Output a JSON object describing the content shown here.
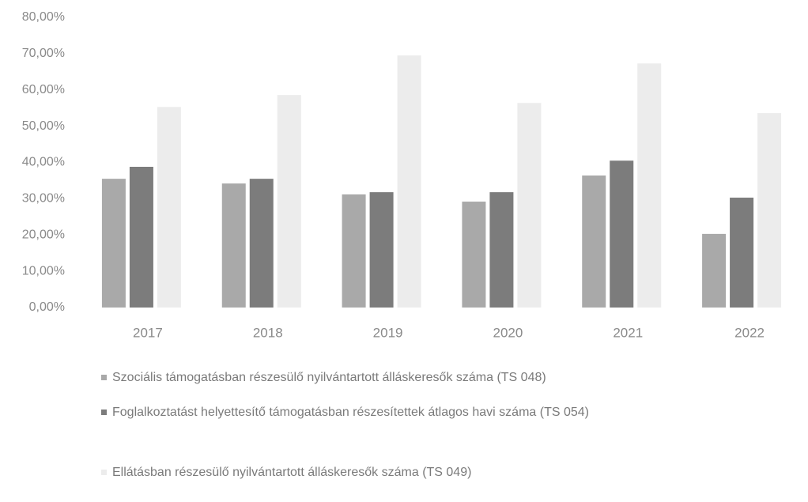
{
  "chart_data": {
    "type": "bar",
    "categories": [
      "2017",
      "2018",
      "2019",
      "2020",
      "2021",
      "2022"
    ],
    "series": [
      {
        "name": "Szociális támogatásban részesülő nyilvántartott álláskeresők száma (TS 048)",
        "color": "#a9a9a9",
        "values": [
          35.5,
          34.2,
          31.2,
          29.2,
          36.4,
          20.3
        ]
      },
      {
        "name": "Foglalkoztatást helyettesítő támogatásban részesítettek átlagos havi száma (TS 054)",
        "color": "#7c7c7c",
        "values": [
          38.8,
          35.5,
          31.8,
          31.8,
          40.5,
          30.3
        ]
      },
      {
        "name": "Ellátásban részesülő nyilvántartott álláskeresők száma (TS 049)",
        "color": "#ececec",
        "values": [
          55.3,
          58.6,
          69.5,
          56.4,
          67.3,
          53.6
        ]
      }
    ],
    "ylim": [
      0,
      80
    ],
    "yticks": [
      {
        "value": 0,
        "label": "0,00%"
      },
      {
        "value": 10,
        "label": "10,00%"
      },
      {
        "value": 20,
        "label": "20,00%"
      },
      {
        "value": 30,
        "label": "30,00%"
      },
      {
        "value": 40,
        "label": "40,00%"
      },
      {
        "value": 50,
        "label": "50,00%"
      },
      {
        "value": 60,
        "label": "60,00%"
      },
      {
        "value": 70,
        "label": "70,00%"
      },
      {
        "value": 80,
        "label": "80,00%"
      }
    ],
    "grid": false
  }
}
